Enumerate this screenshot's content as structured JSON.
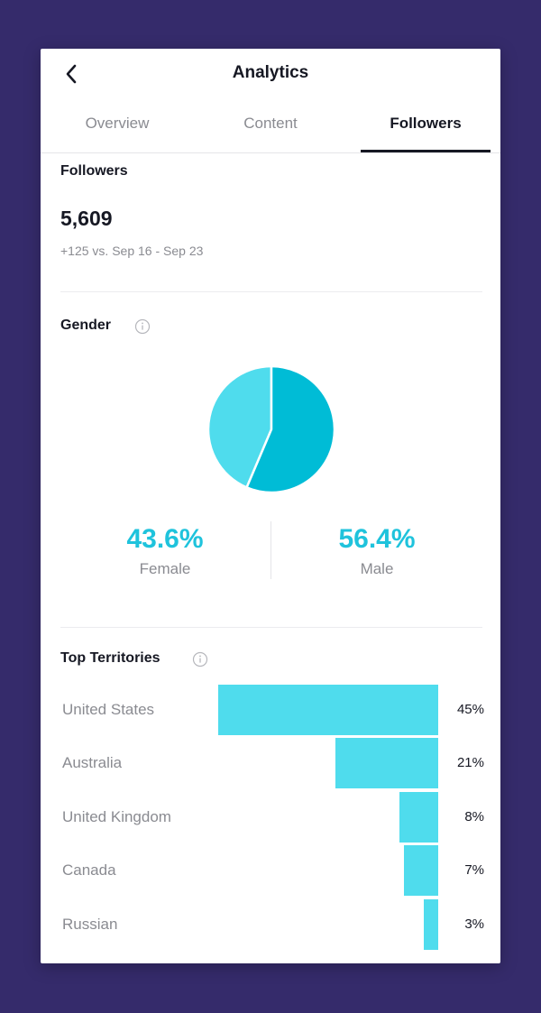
{
  "header": {
    "title": "Analytics",
    "back_icon": "chevron-left-icon"
  },
  "tabs": [
    {
      "label": "Overview",
      "active": false
    },
    {
      "label": "Content",
      "active": false
    },
    {
      "label": "Followers",
      "active": true
    }
  ],
  "followers": {
    "heading": "Followers",
    "count": "5,609",
    "change": "+125 vs. Sep 16 - Sep 23"
  },
  "gender": {
    "heading": "Gender",
    "info_icon": "info-circle-icon",
    "female": {
      "label": "Female",
      "percent_text": "43.6%",
      "value": 43.6
    },
    "male": {
      "label": "Male",
      "percent_text": "56.4%",
      "value": 56.4
    },
    "colors": {
      "female": "#4fdced",
      "male": "#00bcd6",
      "text": "#1fc3dc"
    }
  },
  "territories": {
    "heading": "Top Territories",
    "info_icon": "info-circle-icon",
    "items": [
      {
        "name": "United States",
        "percent_text": "45%",
        "value": 45
      },
      {
        "name": "Australia",
        "percent_text": "21%",
        "value": 21
      },
      {
        "name": "United Kingdom",
        "percent_text": "8%",
        "value": 8
      },
      {
        "name": "Canada",
        "percent_text": "7%",
        "value": 7
      },
      {
        "name": "Russian",
        "percent_text": "3%",
        "value": 3
      }
    ],
    "bar_color": "#4fdced"
  }
}
